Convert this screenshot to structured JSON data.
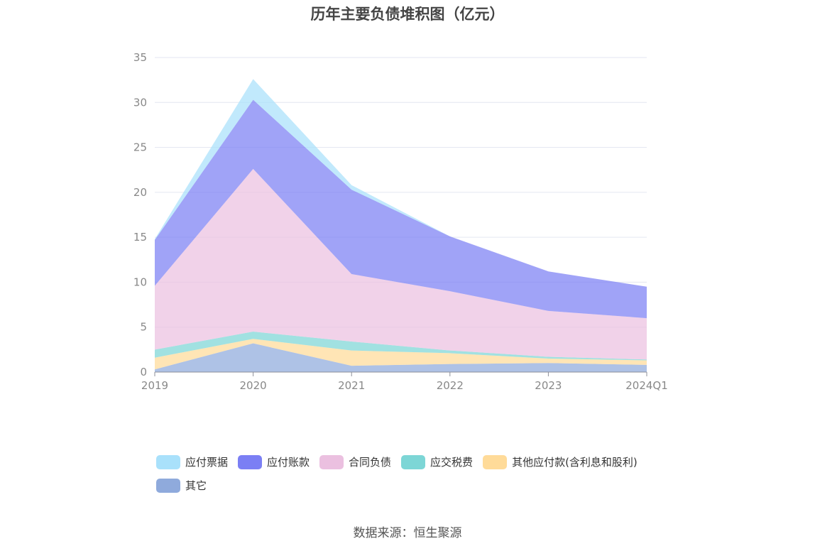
{
  "chart_data": {
    "type": "area",
    "stacked": true,
    "title": "历年主要负债堆积图（亿元）",
    "categories": [
      "2019",
      "2020",
      "2021",
      "2022",
      "2023",
      "2024Q1"
    ],
    "ylim": [
      0,
      35
    ],
    "yticks": [
      0,
      5,
      10,
      15,
      20,
      25,
      30,
      35
    ],
    "grid": true,
    "legend_position": "bottom",
    "series": [
      {
        "name": "其它",
        "color": "#8faadc",
        "values": [
          0.3,
          3.2,
          0.7,
          0.9,
          1.0,
          0.8
        ]
      },
      {
        "name": "其他应付款(含利息和股利)",
        "color": "#ffdb99",
        "values": [
          1.3,
          0.5,
          1.7,
          1.2,
          0.5,
          0.5
        ]
      },
      {
        "name": "应交税费",
        "color": "#7dd6d6",
        "values": [
          0.9,
          0.8,
          1.0,
          0.3,
          0.2,
          0.1
        ]
      },
      {
        "name": "合同负债",
        "color": "#ebc0e0",
        "values": [
          7.1,
          18.1,
          7.5,
          6.6,
          5.1,
          4.6
        ]
      },
      {
        "name": "应付账款",
        "color": "#7b7ff4",
        "values": [
          5.1,
          7.7,
          9.4,
          6.1,
          4.4,
          3.5
        ]
      },
      {
        "name": "应付票据",
        "color": "#a9e1fb",
        "values": [
          0.1,
          2.3,
          0.5,
          0.0,
          0.0,
          0.0
        ]
      }
    ],
    "legend_order": [
      "应付票据",
      "应付账款",
      "合同负债",
      "应交税费",
      "其他应付款(含利息和股利)",
      "其它"
    ]
  },
  "source_text": "数据来源：恒生聚源"
}
